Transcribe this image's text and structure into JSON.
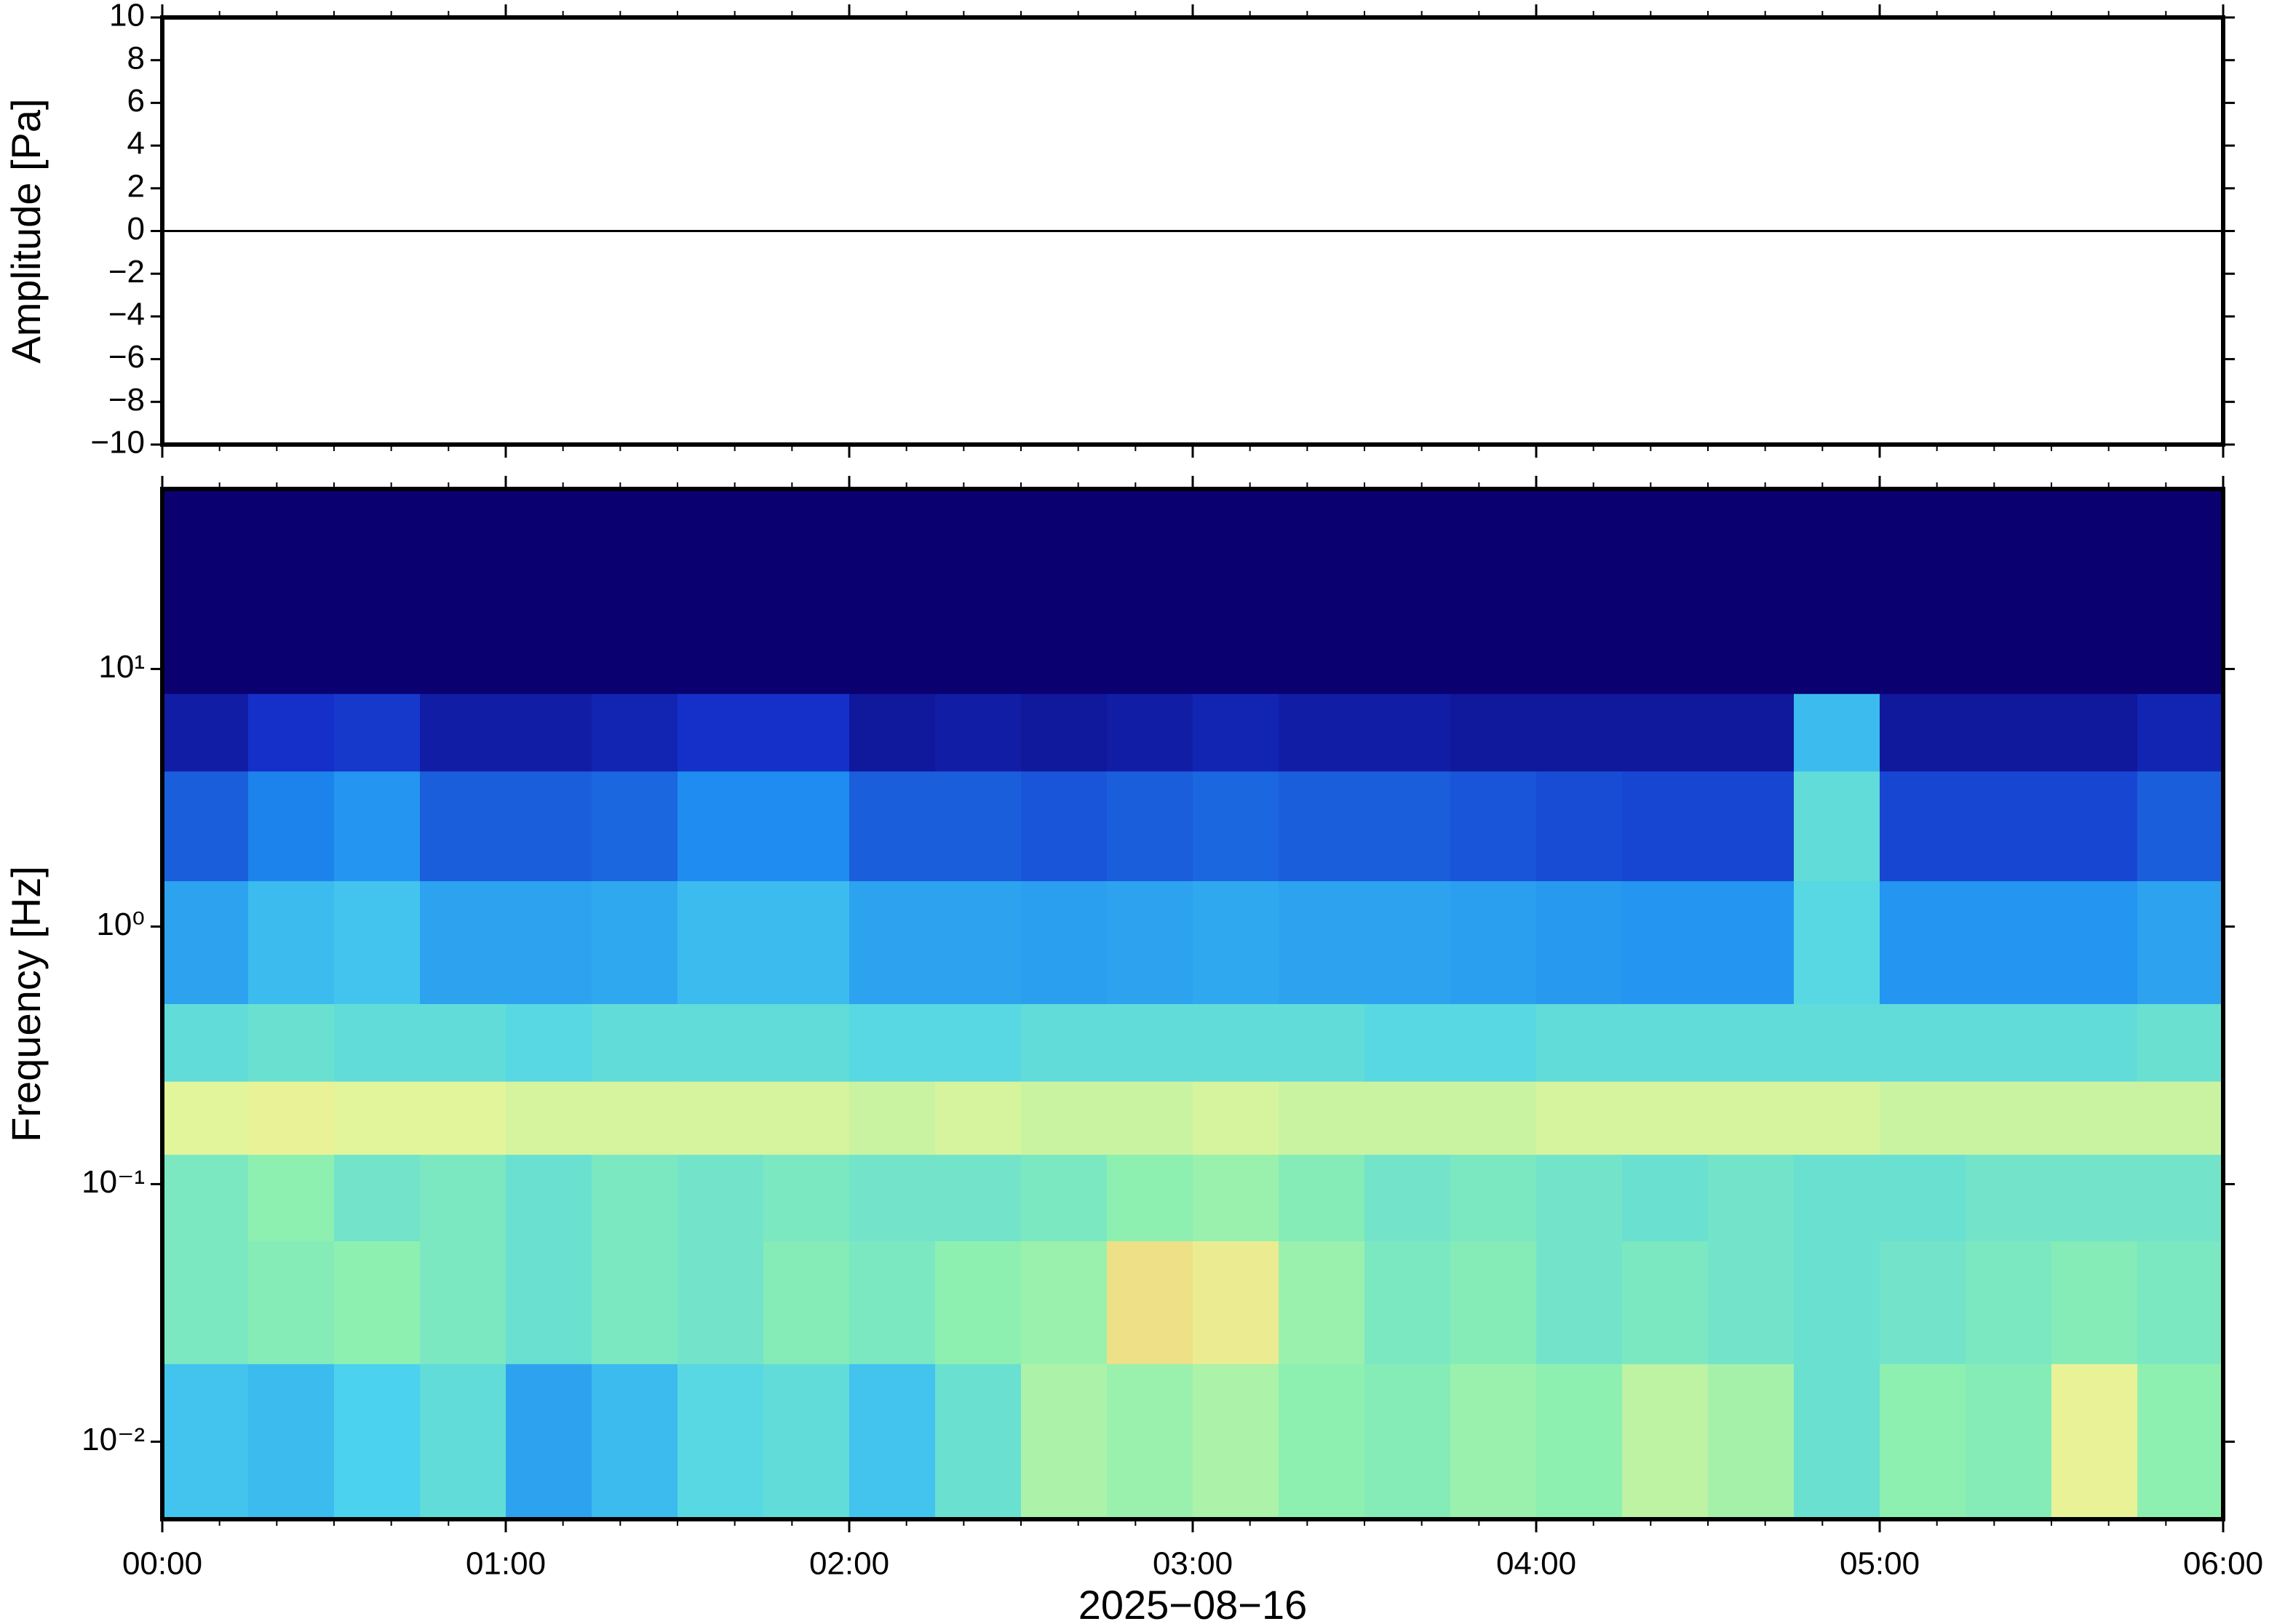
{
  "chart_data": [
    {
      "type": "line",
      "ylabel": "Amplitude [Pa]",
      "x": [
        0,
        0.25,
        0.5,
        0.75,
        1,
        1.25,
        1.5,
        1.75,
        2,
        2.25,
        2.5,
        2.75,
        3,
        3.25,
        3.5,
        3.75,
        4,
        4.25,
        4.5,
        4.75,
        5,
        5.25,
        5.5,
        5.75,
        6
      ],
      "values": [
        0,
        0,
        0,
        0,
        0,
        0,
        0,
        0,
        0,
        0,
        0,
        0,
        0,
        0,
        0,
        0,
        0,
        0,
        0,
        0,
        0,
        0,
        0,
        0,
        0
      ],
      "color": "#000000",
      "xlim": [
        0,
        6
      ],
      "xticks": [
        0,
        1,
        2,
        3,
        4,
        5,
        6
      ],
      "ylim": [
        -10,
        10
      ],
      "yticks": [
        {
          "value": -10,
          "label": "−10"
        },
        {
          "value": -8,
          "label": "−8"
        },
        {
          "value": -6,
          "label": "−6"
        },
        {
          "value": -4,
          "label": "−4"
        },
        {
          "value": -2,
          "label": "−2"
        },
        0,
        2,
        4,
        6,
        8,
        10
      ]
    },
    {
      "type": "heatmap",
      "ylabel": "Frequency [Hz]",
      "xlabel": "2025−08−16",
      "log_y": true,
      "x_edges": [
        0,
        0.25,
        0.5,
        0.75,
        1,
        1.25,
        1.5,
        1.75,
        2,
        2.25,
        2.5,
        2.75,
        3,
        3.25,
        3.5,
        3.75,
        4,
        4.25,
        4.5,
        4.75,
        5,
        5.25,
        5.5,
        5.75,
        6
      ],
      "y_edges": [
        50,
        8,
        4,
        1.5,
        0.5,
        0.25,
        0.13,
        0.06,
        0.02,
        0.005
      ],
      "z": [
        [
          0,
          0,
          0,
          0,
          0,
          0,
          0,
          0,
          0,
          0,
          0,
          0,
          0,
          0,
          0,
          0,
          0,
          0,
          0,
          0,
          0,
          0,
          0,
          0
        ],
        [
          0.12,
          0.2,
          0.22,
          0.12,
          0.12,
          0.15,
          0.2,
          0.2,
          0.1,
          0.12,
          0.1,
          0.12,
          0.15,
          0.12,
          0.12,
          0.1,
          0.1,
          0.1,
          0.1,
          0.5,
          0.1,
          0.1,
          0.1,
          0.15
        ],
        [
          0.3,
          0.38,
          0.42,
          0.3,
          0.3,
          0.32,
          0.4,
          0.4,
          0.3,
          0.3,
          0.28,
          0.3,
          0.32,
          0.3,
          0.3,
          0.28,
          0.26,
          0.25,
          0.25,
          0.6,
          0.25,
          0.25,
          0.25,
          0.3
        ],
        [
          0.45,
          0.5,
          0.52,
          0.45,
          0.45,
          0.46,
          0.5,
          0.5,
          0.45,
          0.45,
          0.44,
          0.45,
          0.46,
          0.45,
          0.45,
          0.44,
          0.43,
          0.42,
          0.42,
          0.58,
          0.42,
          0.42,
          0.42,
          0.45
        ],
        [
          0.6,
          0.62,
          0.6,
          0.6,
          0.58,
          0.6,
          0.6,
          0.6,
          0.58,
          0.58,
          0.6,
          0.6,
          0.6,
          0.6,
          0.58,
          0.58,
          0.6,
          0.6,
          0.6,
          0.6,
          0.6,
          0.6,
          0.6,
          0.62
        ],
        [
          0.84,
          0.86,
          0.84,
          0.84,
          0.82,
          0.82,
          0.82,
          0.82,
          0.8,
          0.82,
          0.8,
          0.8,
          0.82,
          0.8,
          0.8,
          0.8,
          0.82,
          0.82,
          0.82,
          0.82,
          0.8,
          0.8,
          0.8,
          0.8
        ],
        [
          0.66,
          0.7,
          0.64,
          0.66,
          0.62,
          0.66,
          0.64,
          0.66,
          0.64,
          0.64,
          0.66,
          0.7,
          0.72,
          0.68,
          0.64,
          0.66,
          0.64,
          0.62,
          0.64,
          0.62,
          0.62,
          0.64,
          0.64,
          0.64
        ],
        [
          0.66,
          0.68,
          0.7,
          0.66,
          0.62,
          0.66,
          0.64,
          0.68,
          0.66,
          0.7,
          0.72,
          0.92,
          0.88,
          0.72,
          0.66,
          0.68,
          0.64,
          0.66,
          0.64,
          0.62,
          0.64,
          0.66,
          0.68,
          0.66
        ],
        [
          0.52,
          0.5,
          0.55,
          0.6,
          0.45,
          0.5,
          0.58,
          0.6,
          0.52,
          0.62,
          0.75,
          0.72,
          0.75,
          0.7,
          0.68,
          0.72,
          0.7,
          0.78,
          0.74,
          0.62,
          0.7,
          0.68,
          0.86,
          0.7
        ]
      ],
      "colorscale": [
        [
          0,
          "#0a0070"
        ],
        [
          0.2,
          "#1530c8"
        ],
        [
          0.4,
          "#1e8cf0"
        ],
        [
          0.55,
          "#4bd2ee"
        ],
        [
          0.7,
          "#8ef0b0"
        ],
        [
          0.85,
          "#e8f59a"
        ],
        [
          1,
          "#f5c870"
        ]
      ],
      "xlim": [
        0,
        6
      ],
      "xticks": [
        {
          "value": 0,
          "label": "00:00"
        },
        {
          "value": 1,
          "label": "01:00"
        },
        {
          "value": 2,
          "label": "02:00"
        },
        {
          "value": 3,
          "label": "03:00"
        },
        {
          "value": 4,
          "label": "04:00"
        },
        {
          "value": 5,
          "label": "05:00"
        },
        {
          "value": 6,
          "label": "06:00"
        }
      ],
      "ylim": [
        0.005,
        50
      ],
      "yticks": [
        {
          "value": 0.01,
          "label": "10⁻²"
        },
        {
          "value": 0.1,
          "label": "10⁻¹"
        },
        {
          "value": 1,
          "label": "10⁰"
        },
        {
          "value": 10,
          "label": "10¹"
        }
      ]
    }
  ]
}
